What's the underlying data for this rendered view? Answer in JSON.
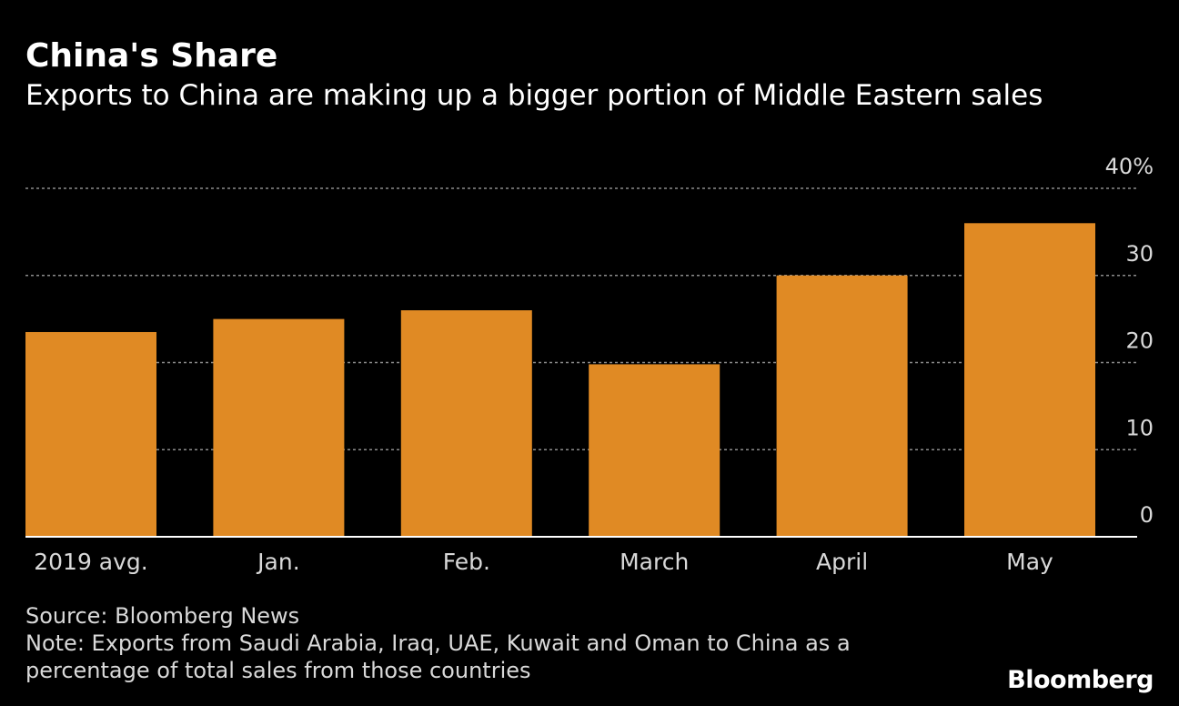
{
  "colors": {
    "background": "#000000",
    "bar": "#e08a24",
    "grid": "#8c8c8c",
    "text": "#ffffff",
    "secondary_text": "#d9d9d9"
  },
  "chart_data": {
    "type": "bar",
    "title": "China's Share",
    "subtitle": "Exports to China are making up a bigger portion of Middle Eastern sales",
    "categories": [
      "2019 avg.",
      "Jan.",
      "Feb.",
      "March",
      "April",
      "May"
    ],
    "values": [
      23.5,
      25,
      26,
      19.8,
      30,
      36
    ],
    "ylim": [
      0,
      40
    ],
    "yticks": [
      0,
      10,
      20,
      30,
      40
    ],
    "ytick_labels": [
      "0",
      "10",
      "20",
      "30",
      "40%"
    ],
    "grid": true,
    "y_axis_side": "right",
    "xlabel": "",
    "ylabel": ""
  },
  "footer": {
    "source": "Source: Bloomberg News",
    "note_line1": "Note: Exports from Saudi Arabia, Iraq, UAE, Kuwait and Oman to China as a",
    "note_line2": "percentage of total sales from those countries"
  },
  "logo": {
    "text": "Bloomberg"
  }
}
